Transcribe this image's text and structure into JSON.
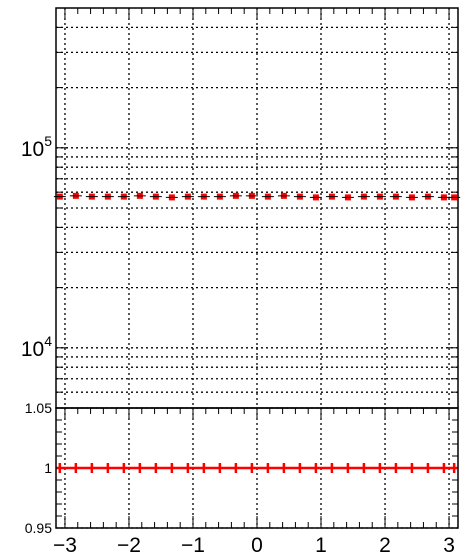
{
  "chart_data": [
    {
      "type": "scatter",
      "title": "",
      "xlabel": "",
      "ylabel": "",
      "yscale": "log",
      "xlim": [
        -3.14,
        3.14
      ],
      "ylim": [
        5000,
        500000
      ],
      "grid": true,
      "ytick_labels": [
        {
          "value": 100000,
          "base": "10",
          "exp": "5"
        },
        {
          "value": 10000,
          "base": "10",
          "exp": "4"
        }
      ],
      "series": [
        {
          "color": "#ff0000",
          "marker": "square",
          "x": [
            -3.08,
            -2.83,
            -2.58,
            -2.33,
            -2.08,
            -1.83,
            -1.58,
            -1.33,
            -1.08,
            -0.83,
            -0.58,
            -0.33,
            -0.08,
            0.17,
            0.42,
            0.67,
            0.92,
            1.17,
            1.42,
            1.67,
            1.92,
            2.17,
            2.42,
            2.67,
            2.92,
            3.08
          ],
          "y": [
            57000,
            57500,
            57000,
            57000,
            57000,
            57500,
            57000,
            56500,
            57000,
            57000,
            57000,
            57500,
            57500,
            57000,
            57500,
            57000,
            56500,
            57000,
            56500,
            57000,
            57000,
            57000,
            56500,
            57000,
            56500,
            56500
          ]
        }
      ]
    },
    {
      "type": "scatter",
      "title": "",
      "xlabel": "",
      "ylabel": "",
      "xlim": [
        -3.14,
        3.14
      ],
      "ylim": [
        0.95,
        1.05
      ],
      "grid": true,
      "xticks": [
        -3,
        -2,
        -1,
        0,
        1,
        2,
        3
      ],
      "xtick_labels": [
        "−3",
        "−2",
        "−1",
        "0",
        "1",
        "2",
        "3"
      ],
      "ytick_labels": [
        {
          "value": 1.05,
          "text": "1.05"
        },
        {
          "value": 1.0,
          "text": "1"
        },
        {
          "value": 0.95,
          "text": "0.95"
        }
      ],
      "reference_line": {
        "y": 1.0,
        "color": "#000000"
      },
      "series": [
        {
          "color": "#ff0000",
          "marker": "cross",
          "x": [
            -3.08,
            -2.83,
            -2.58,
            -2.33,
            -2.08,
            -1.83,
            -1.58,
            -1.33,
            -1.08,
            -0.83,
            -0.58,
            -0.33,
            -0.08,
            0.17,
            0.42,
            0.67,
            0.92,
            1.17,
            1.42,
            1.67,
            1.92,
            2.17,
            2.42,
            2.67,
            2.92,
            3.08
          ],
          "y": [
            1,
            1,
            1,
            1,
            1,
            1,
            1,
            1,
            1,
            1,
            1,
            1,
            1,
            1,
            1,
            1,
            1,
            1,
            1,
            1,
            1,
            1,
            1,
            1,
            1,
            1
          ]
        }
      ]
    }
  ]
}
